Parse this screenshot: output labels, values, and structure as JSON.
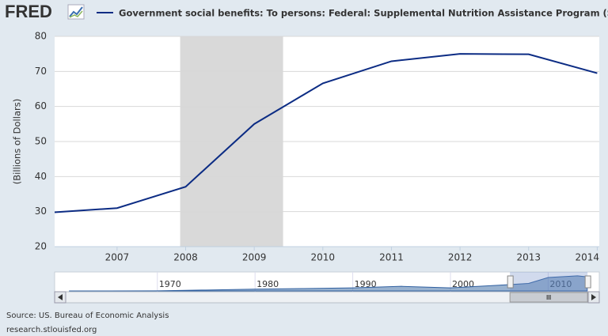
{
  "header": {
    "logo": "FRED"
  },
  "chart_data": {
    "type": "line",
    "series": [
      {
        "name": "Government social benefits: To persons: Federal: Supplemental Nutrition Assistance Program (SNAP)",
        "color": "#0c2c84",
        "values": [
          29.7,
          31.0,
          37.1,
          55.0,
          66.6,
          72.9,
          75.0,
          74.9,
          69.5
        ]
      }
    ],
    "x": [
      2006,
      2007,
      2008,
      2009,
      2010,
      2011,
      2012,
      2013,
      2014
    ],
    "xlim": [
      2006.09,
      2014.03
    ],
    "xticks": [
      2007,
      2008,
      2009,
      2010,
      2011,
      2012,
      2013,
      2014
    ],
    "ylabel": "(Billions of Dollars)",
    "ylim": [
      20,
      80
    ],
    "yticks": [
      20,
      30,
      40,
      50,
      60,
      70,
      80
    ],
    "grid": true,
    "shading": [
      {
        "start": 2007.92,
        "end": 2009.42
      }
    ],
    "navigator": {
      "x": [
        1961,
        1965,
        1970,
        1975,
        1980,
        1985,
        1990,
        1995,
        2000,
        2005,
        2008,
        2010,
        2013,
        2014
      ],
      "values": [
        0.1,
        0.1,
        0.6,
        4.6,
        9.0,
        11.7,
        15.0,
        22.8,
        15.0,
        28.6,
        37.1,
        66.6,
        74.9,
        69.5
      ],
      "xlim": [
        1960.7,
        2014.1
      ],
      "ylim": [
        0,
        90
      ],
      "xticks": [
        1970,
        1980,
        1990,
        2000,
        2010
      ]
    }
  },
  "footer": {
    "source": "Source: US. Bureau of Economic Analysis",
    "url": "research.stlouisfed.org"
  }
}
